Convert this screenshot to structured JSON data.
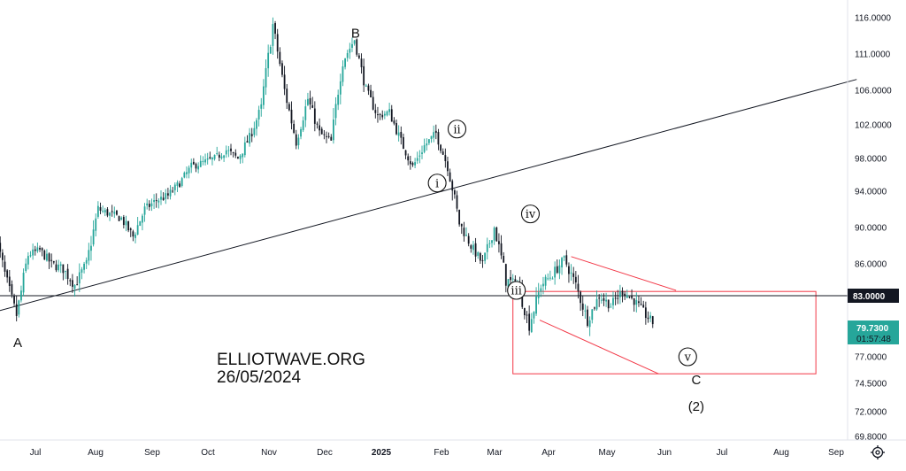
{
  "chart_data": {
    "type": "candlestick",
    "x_labels": [
      "Jul",
      "Aug",
      "Sep",
      "Oct",
      "Nov",
      "Dec",
      "2025",
      "Feb",
      "Mar",
      "Apr",
      "May",
      "Jun",
      "Jul",
      "Aug",
      "Sep"
    ],
    "y_ticks": [
      "116.0000",
      "111.0000",
      "106.0000",
      "102.0000",
      "98.0000",
      "94.0000",
      "90.0000",
      "86.0000",
      "77.0000",
      "74.5000",
      "72.0000",
      "69.8000"
    ],
    "ylim": [
      69.8,
      116.0
    ],
    "price_path": [
      [
        -2,
        90
      ],
      [
        -1,
        85
      ],
      [
        0,
        81
      ],
      [
        1,
        87
      ],
      [
        2,
        87.5
      ],
      [
        3,
        86
      ],
      [
        4,
        85.5
      ],
      [
        5,
        84
      ],
      [
        6,
        86
      ],
      [
        7,
        92
      ],
      [
        8,
        91.5
      ],
      [
        9,
        91
      ],
      [
        10,
        89
      ],
      [
        11,
        92
      ],
      [
        12,
        93
      ],
      [
        13,
        93.5
      ],
      [
        14,
        95
      ],
      [
        15,
        97
      ],
      [
        16,
        97.5
      ],
      [
        17,
        98
      ],
      [
        18,
        99
      ],
      [
        19,
        98
      ],
      [
        20,
        100.5
      ],
      [
        21,
        104
      ],
      [
        22,
        115
      ],
      [
        23,
        106
      ],
      [
        24,
        100
      ],
      [
        25,
        105
      ],
      [
        26,
        101
      ],
      [
        27,
        100
      ],
      [
        28,
        110
      ],
      [
        29,
        113
      ],
      [
        30,
        106
      ],
      [
        31,
        103
      ],
      [
        32,
        103.5
      ],
      [
        33,
        100
      ],
      [
        34,
        97
      ],
      [
        35,
        99.5
      ],
      [
        36,
        101
      ],
      [
        37,
        97
      ],
      [
        38,
        90.5
      ],
      [
        39,
        88
      ],
      [
        40,
        86
      ],
      [
        41,
        90
      ],
      [
        42,
        84.5
      ],
      [
        43,
        84
      ],
      [
        44,
        80
      ],
      [
        45,
        84
      ],
      [
        46,
        85
      ],
      [
        47,
        86.5
      ],
      [
        48,
        84
      ],
      [
        49,
        80.5
      ],
      [
        50,
        83
      ],
      [
        51,
        82
      ],
      [
        52,
        83.5
      ],
      [
        53,
        82.5
      ],
      [
        54,
        81
      ],
      [
        55,
        79.73
      ]
    ],
    "pivot_labels": [
      {
        "text": "A",
        "x": 0,
        "y": 81
      },
      {
        "text": "B",
        "x": 29,
        "y": 113
      },
      {
        "text": "C",
        "x": 58,
        "y": 77
      }
    ],
    "wave_labels": [
      {
        "text": "i",
        "x": 36,
        "y": 95
      },
      {
        "text": "ii",
        "x": 37.7,
        "y": 101.5
      },
      {
        "text": "iii",
        "x": 42.8,
        "y": 83.5
      },
      {
        "text": "iv",
        "x": 44,
        "y": 91.5
      },
      {
        "text": "v",
        "x": 57.5,
        "y": 77
      }
    ],
    "degree_label": {
      "text": "(2)",
      "x": 58,
      "y": 72
    },
    "trendline": {
      "from": [
        -3,
        81
      ],
      "to": [
        72,
        107.5
      ]
    },
    "support_level": 83.0,
    "channel": {
      "upper": {
        "from": [
          47.5,
          86.8
        ],
        "to": [
          56.5,
          83.5
        ]
      },
      "lower": {
        "from": [
          44.8,
          80.5
        ],
        "to": [
          55,
          75.4
        ]
      }
    },
    "target_box": {
      "x": [
        42.5,
        68.5
      ],
      "y": [
        75.4,
        83.4
      ],
      "color": "#f23645"
    },
    "current_price": 79.73,
    "price_tags": {
      "level": "83.0000",
      "current": "79.7300",
      "countdown": "01:57:48"
    },
    "watermark": [
      "ELLIOTWAVE.ORG",
      "26/05/2024"
    ]
  },
  "ui": {
    "settings_icon": "gear-icon"
  }
}
